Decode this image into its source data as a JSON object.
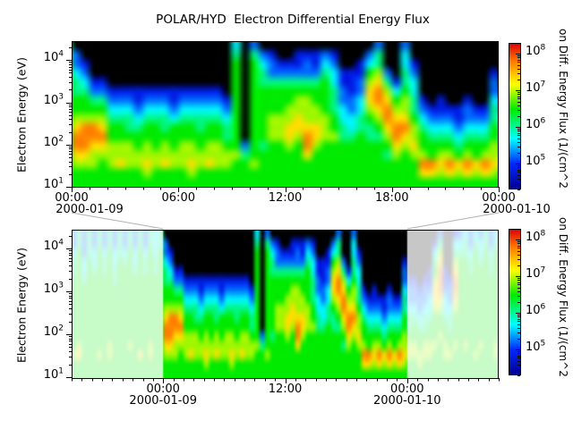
{
  "chart_data": {
    "type": "heatmap",
    "subtype": "electron-energy-spectrogram-with-context-panel",
    "title": "POLAR/HYD  Electron Differential Energy Flux",
    "ylabel": "Electron Energy (eV)",
    "colorbar_label": "on Diff. Energy Flux (1/(cm^2",
    "y_axis": {
      "scale": "log",
      "unit": "eV",
      "tick_exponents": [
        1,
        2,
        3,
        4
      ],
      "range_log10": [
        1.0,
        4.44
      ]
    },
    "colorbar": {
      "tick_exponents": [
        5,
        6,
        7,
        8
      ],
      "range_log10": [
        4.3,
        8.3
      ],
      "colormap_stops": [
        {
          "t": 0.0,
          "color": "#00008C"
        },
        {
          "t": 0.18,
          "color": "#0028FF"
        },
        {
          "t": 0.35,
          "color": "#00FFFF"
        },
        {
          "t": 0.55,
          "color": "#00EB00"
        },
        {
          "t": 0.72,
          "color": "#FFFF00"
        },
        {
          "t": 0.88,
          "color": "#FF7800"
        },
        {
          "t": 1.0,
          "color": "#DC0000"
        }
      ],
      "no_data_color": "#000000"
    },
    "panels": [
      {
        "name": "detail",
        "time_range_hours": [
          0,
          24
        ],
        "xticks": [
          {
            "h": 0,
            "label": "00:00",
            "date": "2000-01-09"
          },
          {
            "h": 6,
            "label": "06:00"
          },
          {
            "h": 12,
            "label": "12:00"
          },
          {
            "h": 18,
            "label": "18:00"
          },
          {
            "h": 24,
            "label": "00:00",
            "date": "2000-01-10"
          }
        ]
      },
      {
        "name": "context",
        "time_range_hours": [
          -9,
          33
        ],
        "highlight_hours": [
          0,
          24
        ],
        "dim_overlay": "rgba(255,255,255,0.78)",
        "xticks": [
          {
            "h": 0,
            "label": "00:00",
            "date": "2000-01-09"
          },
          {
            "h": 12,
            "label": "12:00"
          },
          {
            "h": 24,
            "label": "00:00",
            "date": "2000-01-10"
          }
        ]
      }
    ],
    "grid": {
      "description": "log10 electron differential energy flux; columns = time steps, 16 chars per column read top (10^4.44 eV) to bottom (10^1 eV)",
      "time_start_hours": -9.5,
      "time_step_hours": 0.5,
      "rows": 16,
      "cell_encoding": "'.' = no data (black); digit d -> log10 flux = 4.4 + 0.42*d",
      "columns": [
        "4455555555555555",
        "2234455555555655",
        "4455555555556755",
        "2223345555555555",
        "4445555555555555",
        "2233455555555555",
        "4455555555555655",
        "2234455555555555",
        "4455555555556655",
        "2233445555555555",
        "4445555555555555",
        "2234555555555555",
        "4455555555556555",
        "2233455555555555",
        "4455555555555755",
        "2234455555555555",
        "4455555555556655",
        "3334455555555555",
        "4455555555555555",
        ".223445567887655",
        "..12345568887655",
        "....124568876655",
        "....124567876555",
        ".....12345566655",
        ".....12345566755",
        ".....12344566655",
        ".....11234556655",
        ".....12345566765",
        ".....12345556655",
        ".....12344566755",
        ".....11235556655",
        ".....12345566655",
        ".....12345566765",
        ".....12344556655",
        ".....12345566755",
        ".....12345566655",
        "......1234456655",
        "3455555555556555",
        "...........24555",
        "2455555555555655",
        ".234455555545555",
        ".122455566655555",
        "..12455566655555",
        "..12455667765555",
        ".112456677655555",
        ".122456667887555",
        ".112455667765555",
        ".234555566655555",
        ".123344455655555",
        "...1122334455555",
        "...1112233455555",
        "..11223344555555",
        ".235677654455555",
        "2446788765455555",
        "...2467887654555",
        "....135678876555",
        "2334456678765555",
        "..12334456676555",
        "......1234556875",
        ".......123455875",
        "......1123456765",
        ".......123456875",
        ".......112345765",
        "......1223456875",
        ".......123455765",
        ".......123456875",
        "...1223445566765",
        ".....12234456655",
        ".....12234556655",
        "......1223455665",
        ".....12234456655",
        "....112334556655",
        ".134567765556555",
        "2467888765565555",
        "....112334556655",
        ".....12234455655",
        "1346788765556555",
        "2345555555555555",
        "3445555555556555",
        "2234455555555555",
        "3455555555555655",
        "2334555555556555",
        "4455555555555555",
        "2234455555555555",
        "3455555555556655",
        "3344555555555555",
        "4455555555555555"
      ]
    }
  }
}
